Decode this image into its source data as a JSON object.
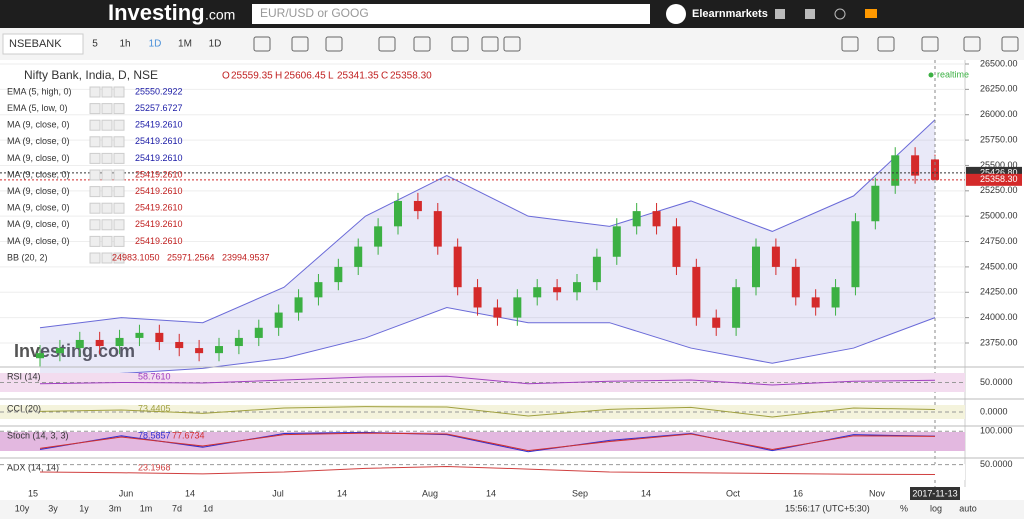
{
  "header": {
    "logo": "Investing",
    "logo_suffix": ".com",
    "search_placeholder": "EUR/USD or GOOG",
    "user": "Elearnmarkets"
  },
  "toolbar": {
    "symbol": "NSEBANK",
    "intervals": [
      "5",
      "1h",
      "1D",
      "1M",
      "1D"
    ]
  },
  "legend": {
    "title": "Nifty Bank, India, D, NSE",
    "ohlc": [
      {
        "key": "O",
        "value": "25559.35"
      },
      {
        "key": "H",
        "value": "25606.45"
      },
      {
        "key": "L",
        "value": "25341.35"
      },
      {
        "key": "C",
        "value": "25358.30"
      }
    ],
    "rows": [
      {
        "name": "EMA (5, high, 0)",
        "values": [
          "25550.2922"
        ],
        "color": "#1a1aa6"
      },
      {
        "name": "EMA (5, low, 0)",
        "values": [
          "25257.6727"
        ],
        "color": "#1a1aa6"
      },
      {
        "name": "MA (9, close, 0)",
        "values": [
          "25419.2610"
        ],
        "color": "#1a1aa6"
      },
      {
        "name": "MA (9, close, 0)",
        "values": [
          "25419.2610"
        ],
        "color": "#1a1aa6"
      },
      {
        "name": "MA (9, close, 0)",
        "values": [
          "25419.2610"
        ],
        "color": "#1a1aa6"
      },
      {
        "name": "MA (9, close, 0)",
        "values": [
          "25419.2610"
        ],
        "color": "#c02020"
      },
      {
        "name": "MA (9, close, 0)",
        "values": [
          "25419.2610"
        ],
        "color": "#c02020"
      },
      {
        "name": "MA (9, close, 0)",
        "values": [
          "25419.2610"
        ],
        "color": "#c02020"
      },
      {
        "name": "MA (9, close, 0)",
        "values": [
          "25419.2610"
        ],
        "color": "#c02020"
      },
      {
        "name": "MA (9, close, 0)",
        "values": [
          "25419.2610"
        ],
        "color": "#c02020"
      },
      {
        "name": "BB (20, 2)",
        "values": [
          "24983.1050",
          "25971.2564",
          "23994.9537"
        ],
        "color": "#c02020"
      }
    ],
    "realtime": "realtime",
    "watermark": "Investing.com"
  },
  "chart_data": {
    "type": "candlestick",
    "open": [
      23600,
      23650,
      23700,
      23780,
      23720,
      23800,
      23850,
      23760,
      23700,
      23650,
      23720,
      23800,
      23900,
      24050,
      24200,
      24350,
      24500,
      24700,
      24900,
      25150,
      25050,
      24700,
      24300,
      24100,
      24000,
      24200,
      24300,
      24250,
      24350,
      24600,
      24900,
      25050,
      24900,
      24500,
      24000,
      23900,
      24300,
      24700,
      24500,
      24200,
      24100,
      24300,
      24950,
      25300,
      25600,
      25559.35
    ],
    "high": [
      23730,
      23780,
      23860,
      23860,
      23880,
      23930,
      23930,
      23840,
      23780,
      23800,
      23880,
      23980,
      24130,
      24280,
      24430,
      24580,
      24780,
      24980,
      25230,
      25230,
      25130,
      24780,
      24380,
      24180,
      24280,
      24380,
      24380,
      24430,
      24680,
      24980,
      25130,
      25130,
      24980,
      24580,
      24080,
      24380,
      24780,
      24780,
      24580,
      24280,
      24380,
      25030,
      25380,
      25680,
      25680,
      25606.45
    ],
    "low": [
      23520,
      23570,
      23620,
      23640,
      23640,
      23720,
      23680,
      23620,
      23570,
      23570,
      23640,
      23720,
      23820,
      23970,
      24120,
      24270,
      24420,
      24620,
      24820,
      24970,
      24620,
      24220,
      24020,
      23920,
      23920,
      24120,
      24170,
      24170,
      24270,
      24520,
      24820,
      24820,
      24420,
      23920,
      23820,
      23820,
      24220,
      24420,
      24120,
      24020,
      24020,
      24220,
      24870,
      25220,
      25320,
      25341.35
    ],
    "close": [
      23650,
      23700,
      23780,
      23720,
      23800,
      23850,
      23760,
      23700,
      23650,
      23720,
      23800,
      23900,
      24050,
      24200,
      24350,
      24500,
      24700,
      24900,
      25150,
      25050,
      24700,
      24300,
      24100,
      24000,
      24200,
      24300,
      24250,
      24350,
      24600,
      24900,
      25050,
      24900,
      24500,
      24000,
      23900,
      24300,
      24700,
      24500,
      24200,
      24100,
      24300,
      24950,
      25300,
      25600,
      25400,
      25358.3
    ],
    "bb_upper": [
      23900,
      24000,
      23950,
      24300,
      25000,
      25400,
      25000,
      24900,
      25150,
      24850,
      25200,
      25950
    ],
    "bb_lower": [
      23400,
      23450,
      23500,
      23600,
      23800,
      24100,
      23950,
      23950,
      23700,
      23550,
      23700,
      24000
    ],
    "up_color": "#3cb043",
    "down_color": "#d42a2a",
    "bb_color": "#6a6ad8",
    "ylim": [
      23550,
      26650
    ],
    "yticks": [
      {
        "value": 26500,
        "label": "26500.00"
      },
      {
        "value": 26250,
        "label": "26250.00"
      },
      {
        "value": 26000,
        "label": "26000.00"
      },
      {
        "value": 25750,
        "label": "25750.00"
      },
      {
        "value": 25500,
        "label": "25500.00"
      },
      {
        "value": 25250,
        "label": "25250.00"
      },
      {
        "value": 25000,
        "label": "25000.00"
      },
      {
        "value": 24750,
        "label": "24750.00"
      },
      {
        "value": 24500,
        "label": "24500.00"
      },
      {
        "value": 24250,
        "label": "24250.00"
      },
      {
        "value": 24000,
        "label": "24000.00"
      },
      {
        "value": 23750,
        "label": "23750.00"
      }
    ],
    "price_labels": [
      {
        "value": 25426.8,
        "label": "25426.80",
        "color": "#333333"
      },
      {
        "value": 25358.3,
        "label": "25358.30",
        "color": "#d42a2a"
      }
    ],
    "dates": [
      "15",
      "Jun",
      "14",
      "Jul",
      "14",
      "Aug",
      "14",
      "Sep",
      "14",
      "Oct",
      "16",
      "Nov",
      "2017-11-13"
    ],
    "grid": true
  },
  "indicators": [
    {
      "name": "RSI (14)",
      "value_texts": [
        "58.7610"
      ],
      "ylim": [
        0,
        100
      ],
      "ticks": [
        {
          "value": 50,
          "label": "50.0000"
        }
      ],
      "band": "#f3dcef",
      "series": [
        {
          "color": "#a040c0",
          "values": [
            45,
            50,
            48,
            60,
            72,
            75,
            45,
            55,
            60,
            40,
            55,
            58.761
          ]
        }
      ]
    },
    {
      "name": "CCI (20)",
      "value_texts": [
        "73.4405"
      ],
      "ylim": [
        -300,
        300
      ],
      "ticks": [
        {
          "value": 0,
          "label": "0.0000"
        }
      ],
      "band": "#f4f3dc",
      "series": [
        {
          "color": "#a0a040",
          "values": [
            20,
            60,
            -40,
            120,
            160,
            150,
            -120,
            80,
            140,
            -150,
            120,
            73.4405
          ]
        }
      ]
    },
    {
      "name": "Stoch (14, 3, 3)",
      "value_texts": [
        "78.5857",
        "77.6734"
      ],
      "ylim": [
        0,
        110
      ],
      "ticks": [
        {
          "value": 100,
          "label": "100.000"
        }
      ],
      "band": "#e3b8e0",
      "series": [
        {
          "color": "#3030d0",
          "values": [
            20,
            80,
            30,
            90,
            95,
            85,
            10,
            60,
            90,
            15,
            85,
            78.5857
          ]
        },
        {
          "color": "#d03030",
          "values": [
            25,
            75,
            35,
            85,
            92,
            88,
            15,
            55,
            88,
            20,
            80,
            77.6734
          ]
        }
      ]
    },
    {
      "name": "ADX (14, 14)",
      "value_texts": [
        "23.1968"
      ],
      "ylim": [
        0,
        60
      ],
      "ticks": [
        {
          "value": 50,
          "label": "50.0000"
        }
      ],
      "band": "#ffffff",
      "series": [
        {
          "color": "#d04040",
          "values": [
            30,
            28,
            25,
            30,
            40,
            45,
            38,
            30,
            28,
            26,
            24,
            23.1968
          ]
        }
      ]
    }
  ],
  "footer": {
    "ranges": [
      "10y",
      "3y",
      "1y",
      "3m",
      "1m",
      "7d",
      "1d"
    ],
    "time": "15:56:17 (UTC+5:30)",
    "options": [
      "%",
      "log",
      "auto"
    ]
  }
}
